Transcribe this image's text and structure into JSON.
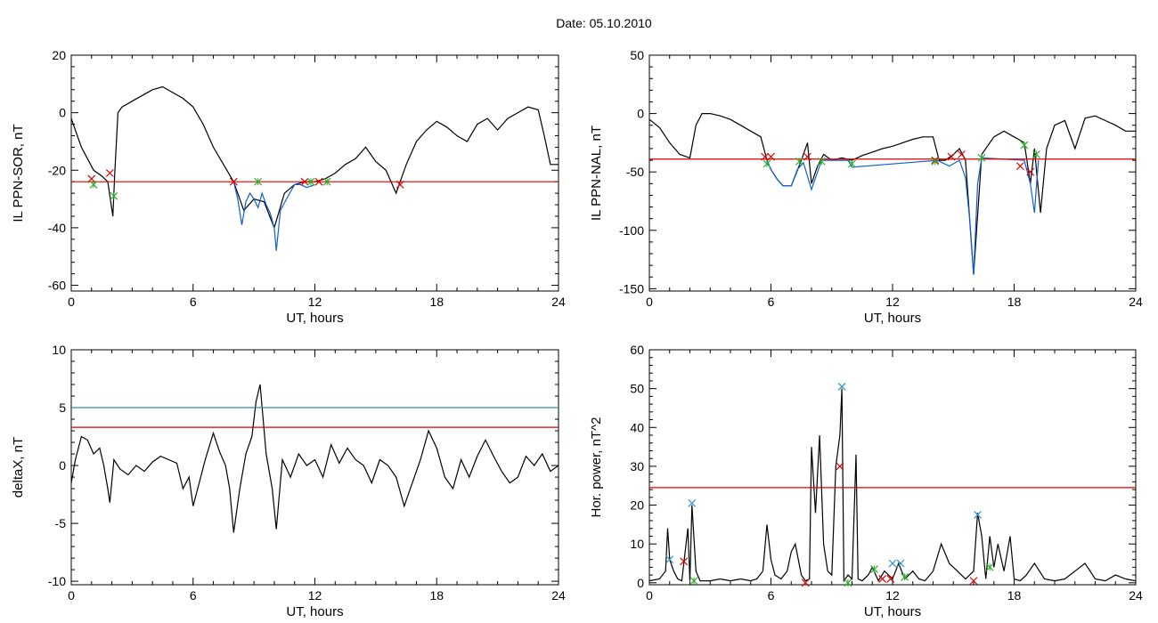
{
  "title": "Date:  05.10.2010",
  "chart_data": [
    {
      "id": "p1",
      "type": "line",
      "ylabel": "IL PPN-SOR, nT",
      "xlabel": "UT, hours",
      "xlim": [
        0,
        24
      ],
      "ylim": [
        -62,
        20
      ],
      "xticks": [
        0,
        6,
        12,
        18,
        24
      ],
      "yticks": [
        20,
        0,
        -20,
        -40,
        -60
      ],
      "series": [
        {
          "color": "#000000",
          "x": [
            0,
            0.3,
            0.5,
            0.8,
            1.1,
            1.5,
            1.8,
            2.05,
            2.15,
            2.3,
            2.5,
            3,
            3.5,
            4,
            4.5,
            5,
            5.5,
            6,
            6.5,
            7,
            7.5,
            8,
            8.5,
            9,
            9.5,
            10,
            10.5,
            11,
            11.5,
            12,
            12.5,
            13,
            13.5,
            14,
            14.5,
            15,
            15.5,
            16,
            16.2,
            16.5,
            17,
            17.5,
            18,
            18.5,
            19,
            19.5,
            20,
            20.5,
            21,
            21.5,
            22,
            22.5,
            23,
            23.3,
            23.6,
            24
          ],
          "y": [
            -2,
            -8,
            -12,
            -16,
            -20,
            -22,
            -24,
            -36,
            -20,
            0,
            2,
            4,
            6,
            8,
            9,
            7,
            5,
            2,
            -4,
            -12,
            -18,
            -24,
            -34,
            -30,
            -31,
            -40,
            -28,
            -25,
            -24,
            -24,
            -23,
            -21,
            -18,
            -16,
            -12,
            -17,
            -20,
            -28,
            -24,
            -18,
            -10,
            -6,
            -3,
            -5,
            -8,
            -10,
            -4,
            -2,
            -6,
            -2,
            0,
            2,
            1,
            -8,
            -18,
            -18
          ]
        },
        {
          "color": "#1060d0",
          "x": [
            8,
            8.2,
            8.4,
            8.6,
            8.8,
            9,
            9.2,
            9.4,
            9.6,
            9.8,
            10,
            10.1,
            10.3,
            10.6,
            11,
            11.3,
            11.6,
            12
          ],
          "y": [
            -24,
            -30,
            -39,
            -31,
            -28,
            -30,
            -33,
            -28,
            -32,
            -35,
            -40,
            -48,
            -34,
            -30,
            -25,
            -25,
            -26,
            -25
          ]
        }
      ],
      "hlines": [
        {
          "y": -24,
          "color": "#e00000"
        }
      ],
      "markers": [
        {
          "x": 1.0,
          "y": -23,
          "color": "#e00000"
        },
        {
          "x": 1.9,
          "y": -21,
          "color": "#e00000"
        },
        {
          "x": 8.0,
          "y": -24,
          "color": "#e00000"
        },
        {
          "x": 11.5,
          "y": -24,
          "color": "#e00000"
        },
        {
          "x": 12.2,
          "y": -24,
          "color": "#e00000"
        },
        {
          "x": 16.2,
          "y": -25,
          "color": "#e00000"
        },
        {
          "x": 1.1,
          "y": -25,
          "color": "#2cb02c"
        },
        {
          "x": 2.1,
          "y": -29,
          "color": "#2cb02c"
        },
        {
          "x": 9.2,
          "y": -24,
          "color": "#2cb02c"
        },
        {
          "x": 11.8,
          "y": -24,
          "color": "#2cb02c"
        },
        {
          "x": 12.6,
          "y": -24,
          "color": "#2cb02c"
        }
      ]
    },
    {
      "id": "p2",
      "type": "line",
      "ylabel": "IL PPN-NAL, nT",
      "xlabel": "UT, hours",
      "xlim": [
        0,
        24
      ],
      "ylim": [
        -152,
        50
      ],
      "xticks": [
        0,
        6,
        12,
        18,
        24
      ],
      "yticks": [
        50,
        0,
        -50,
        -100,
        -150
      ],
      "series": [
        {
          "color": "#000000",
          "x": [
            0,
            0.5,
            1,
            1.5,
            2,
            2.3,
            2.6,
            3,
            3.5,
            4,
            4.5,
            5,
            5.5,
            5.8,
            6,
            6.3,
            6.6,
            7,
            7.5,
            7.8,
            8,
            8.3,
            8.6,
            9,
            9.5,
            10,
            10.5,
            11,
            11.5,
            12,
            12.5,
            13,
            13.5,
            14,
            14.3,
            14.6,
            15,
            15.3,
            15.6,
            16,
            16.4,
            17,
            17.5,
            18,
            18.5,
            18.8,
            19,
            19.3,
            19.6,
            20,
            20.5,
            21,
            21.5,
            22,
            22.5,
            23,
            23.5,
            24
          ],
          "y": [
            -5,
            -12,
            -25,
            -35,
            -38,
            -10,
            0,
            0,
            -2,
            -5,
            -10,
            -15,
            -20,
            -40,
            -48,
            -56,
            -62,
            -62,
            -40,
            -25,
            -60,
            -45,
            -35,
            -40,
            -38,
            -40,
            -36,
            -33,
            -30,
            -28,
            -25,
            -22,
            -20,
            -20,
            -40,
            -40,
            -35,
            -30,
            -40,
            -138,
            -35,
            -20,
            -15,
            -20,
            -25,
            -60,
            -30,
            -85,
            -30,
            -10,
            -6,
            -30,
            -4,
            -2,
            -6,
            -10,
            -15,
            -15
          ]
        },
        {
          "color": "#1060d0",
          "x": [
            5.8,
            6,
            6.3,
            6.6,
            7,
            7.3,
            7.6,
            8,
            8.2,
            8.5,
            9.8,
            10,
            14.2,
            14.8,
            15.3,
            15.6,
            15.8,
            16,
            16.2,
            16.4,
            18.5,
            18.8,
            19,
            19.2
          ],
          "y": [
            -40,
            -48,
            -56,
            -62,
            -62,
            -48,
            -42,
            -65,
            -55,
            -40,
            -40,
            -46,
            -40,
            -45,
            -40,
            -55,
            -90,
            -138,
            -60,
            -38,
            -40,
            -60,
            -85,
            -40
          ]
        }
      ],
      "hlines": [
        {
          "y": -39,
          "color": "#e00000"
        }
      ],
      "markers": [
        {
          "x": 5.7,
          "y": -37,
          "color": "#e00000"
        },
        {
          "x": 6.0,
          "y": -37,
          "color": "#e00000"
        },
        {
          "x": 7.8,
          "y": -37,
          "color": "#e00000"
        },
        {
          "x": 14.1,
          "y": -40,
          "color": "#e00000"
        },
        {
          "x": 14.9,
          "y": -37,
          "color": "#e00000"
        },
        {
          "x": 15.4,
          "y": -35,
          "color": "#e00000"
        },
        {
          "x": 18.3,
          "y": -45,
          "color": "#e00000"
        },
        {
          "x": 18.8,
          "y": -50,
          "color": "#e00000"
        },
        {
          "x": 5.8,
          "y": -43,
          "color": "#2cb02c"
        },
        {
          "x": 7.4,
          "y": -41,
          "color": "#2cb02c"
        },
        {
          "x": 8.5,
          "y": -41,
          "color": "#2cb02c"
        },
        {
          "x": 10.0,
          "y": -43,
          "color": "#2cb02c"
        },
        {
          "x": 14.1,
          "y": -41,
          "color": "#2cb02c"
        },
        {
          "x": 16.4,
          "y": -38,
          "color": "#2cb02c"
        },
        {
          "x": 18.5,
          "y": -27,
          "color": "#2cb02c"
        },
        {
          "x": 19.1,
          "y": -35,
          "color": "#2cb02c"
        }
      ]
    },
    {
      "id": "p3",
      "type": "line",
      "ylabel": "deltaX, nT",
      "xlabel": "UT, hours",
      "xlim": [
        0,
        24
      ],
      "ylim": [
        -10.3,
        10
      ],
      "xticks": [
        0,
        6,
        12,
        18,
        24
      ],
      "yticks": [
        10,
        5,
        0,
        -5,
        -10
      ],
      "series": [
        {
          "color": "#000000",
          "x": [
            0,
            0.2,
            0.5,
            0.8,
            1.1,
            1.4,
            1.6,
            1.8,
            1.9,
            2.1,
            2.4,
            2.8,
            3.2,
            3.6,
            4,
            4.4,
            4.8,
            5.2,
            5.5,
            5.8,
            6,
            6.3,
            6.6,
            7,
            7.3,
            7.6,
            7.8,
            8.0,
            8.3,
            8.6,
            8.9,
            9.1,
            9.3,
            9.6,
            9.9,
            10.1,
            10.4,
            10.8,
            11.2,
            11.6,
            12,
            12.4,
            12.8,
            13.2,
            13.6,
            14,
            14.4,
            14.8,
            15.2,
            15.6,
            16,
            16.4,
            16.8,
            17.2,
            17.6,
            18,
            18.4,
            18.8,
            19.2,
            19.6,
            20,
            20.4,
            20.8,
            21.2,
            21.6,
            22,
            22.4,
            22.8,
            23.2,
            23.6,
            24
          ],
          "y": [
            -1.5,
            0.5,
            2.5,
            2.2,
            1.0,
            1.5,
            0.0,
            -2.0,
            -3.2,
            0.5,
            -0.3,
            -0.8,
            0.0,
            -0.5,
            0.3,
            0.8,
            0.5,
            0.2,
            -2.0,
            -1.0,
            -3.5,
            -1.5,
            0.5,
            2.8,
            1.2,
            0.0,
            -2.0,
            -5.8,
            -2.0,
            1.0,
            2.5,
            5.5,
            7.0,
            1.0,
            -2.0,
            -5.5,
            0.5,
            -1.0,
            1.0,
            0.0,
            0.5,
            -1.0,
            1.8,
            0.2,
            1.5,
            0.5,
            0.0,
            -1.5,
            0.5,
            0.0,
            -1.0,
            -3.5,
            -1.5,
            0.5,
            3.0,
            1.5,
            -1.0,
            -2.0,
            0.5,
            -1.0,
            0.8,
            2.2,
            0.8,
            -0.5,
            -1.5,
            -1.0,
            0.8,
            0.0,
            1.0,
            -0.5,
            0.0
          ]
        }
      ],
      "hlines": [
        {
          "y": 5,
          "color": "#2a8fa8"
        },
        {
          "y": 3.3,
          "color": "#e00000"
        }
      ],
      "markers": []
    },
    {
      "id": "p4",
      "type": "line",
      "ylabel": "Hor. power, nT^2",
      "xlabel": "UT, hours",
      "xlim": [
        0,
        24
      ],
      "ylim": [
        -0.5,
        60
      ],
      "xticks": [
        0,
        6,
        12,
        18,
        24
      ],
      "yticks": [
        60,
        50,
        40,
        30,
        20,
        10,
        0
      ],
      "series": [
        {
          "color": "#000000",
          "x": [
            0,
            0.5,
            0.8,
            0.9,
            1.0,
            1.2,
            1.4,
            1.6,
            1.9,
            2.0,
            2.1,
            2.3,
            2.5,
            3,
            3.5,
            4,
            4.5,
            5,
            5.3,
            5.6,
            5.8,
            6.0,
            6.2,
            6.5,
            6.8,
            7.0,
            7.2,
            7.5,
            7.7,
            7.9,
            8.0,
            8.2,
            8.4,
            8.6,
            8.8,
            9.0,
            9.2,
            9.4,
            9.5,
            9.6,
            9.8,
            10.0,
            10.2,
            10.3,
            10.5,
            10.8,
            11.0,
            11.3,
            11.6,
            12.0,
            12.3,
            12.6,
            13.0,
            13.3,
            13.6,
            14.0,
            14.4,
            14.8,
            15.2,
            15.6,
            16.0,
            16.2,
            16.4,
            16.6,
            16.8,
            17.0,
            17.2,
            17.5,
            17.8,
            18.0,
            18.3,
            18.6,
            19.0,
            19.5,
            20.0,
            20.5,
            21.0,
            21.5,
            22.0,
            22.5,
            23.0,
            23.5,
            24
          ],
          "y": [
            0.5,
            1,
            3,
            14,
            6,
            3,
            1,
            0.5,
            14,
            0.5,
            20,
            3,
            0.5,
            0.5,
            1,
            0.5,
            1,
            0.5,
            1,
            3,
            15,
            6,
            2,
            1,
            3,
            8,
            10,
            2,
            0.5,
            1,
            35,
            18,
            38,
            10,
            3,
            2,
            30,
            38,
            50,
            0.5,
            2,
            1,
            33,
            1,
            0.5,
            2,
            4,
            0.5,
            3,
            1,
            5,
            1,
            3,
            1,
            0.5,
            3,
            10,
            5,
            3,
            1,
            3,
            18,
            12,
            1,
            12,
            4,
            10,
            3,
            12,
            1,
            0.5,
            2,
            5,
            1,
            0.5,
            1,
            3,
            5,
            1,
            0.5,
            2,
            1,
            0.5
          ]
        }
      ],
      "hlines": [
        {
          "y": 24.5,
          "color": "#e00000"
        }
      ],
      "markers": [
        {
          "x": 1.7,
          "y": 5.5,
          "color": "#e00000"
        },
        {
          "x": 7.7,
          "y": 0,
          "color": "#e00000"
        },
        {
          "x": 9.4,
          "y": 30,
          "color": "#e00000"
        },
        {
          "x": 11.5,
          "y": 1,
          "color": "#e00000"
        },
        {
          "x": 11.9,
          "y": 1,
          "color": "#e00000"
        },
        {
          "x": 16.0,
          "y": 0.5,
          "color": "#e00000"
        },
        {
          "x": 1.0,
          "y": 6,
          "color": "#2d8ec8"
        },
        {
          "x": 2.1,
          "y": 20.5,
          "color": "#2d8ec8"
        },
        {
          "x": 9.5,
          "y": 50.5,
          "color": "#2d8ec8"
        },
        {
          "x": 12.0,
          "y": 5,
          "color": "#2d8ec8"
        },
        {
          "x": 12.4,
          "y": 5,
          "color": "#2d8ec8"
        },
        {
          "x": 16.2,
          "y": 17.5,
          "color": "#2d8ec8"
        },
        {
          "x": 2.2,
          "y": 0.5,
          "color": "#2cb02c"
        },
        {
          "x": 9.8,
          "y": 0,
          "color": "#2cb02c"
        },
        {
          "x": 11.1,
          "y": 3.5,
          "color": "#2cb02c"
        },
        {
          "x": 12.6,
          "y": 1.5,
          "color": "#2cb02c"
        },
        {
          "x": 16.8,
          "y": 4,
          "color": "#2cb02c"
        }
      ]
    }
  ]
}
